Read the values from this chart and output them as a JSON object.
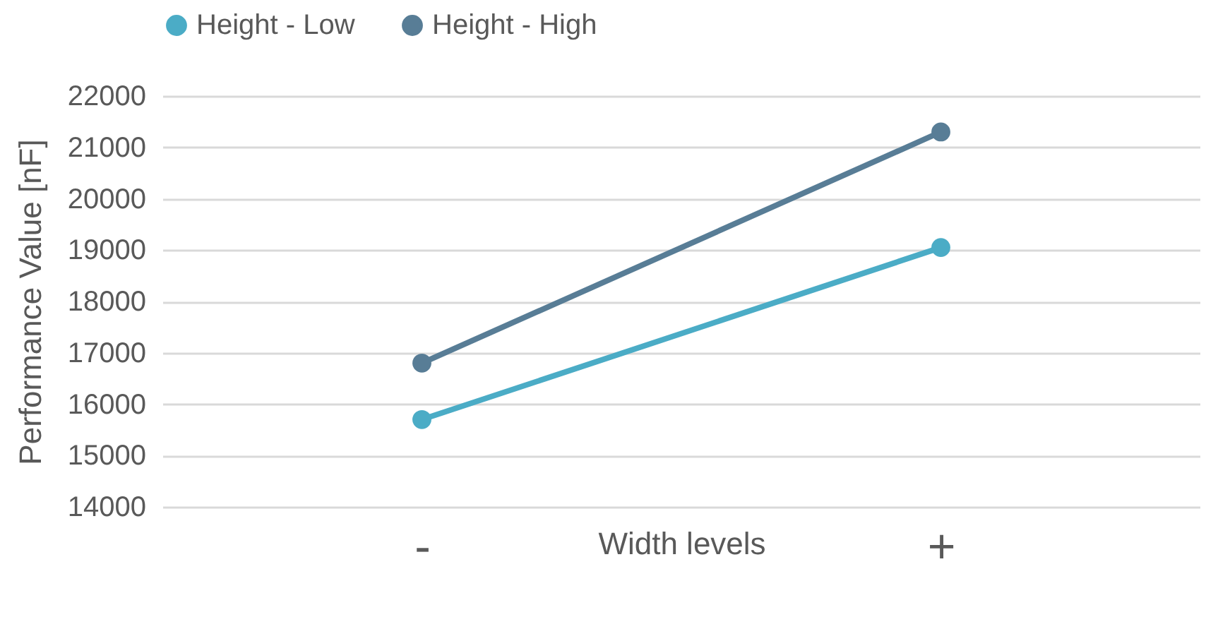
{
  "chart_data": {
    "type": "line",
    "xlabel": "Width levels",
    "ylabel": "Performance Value [nF]",
    "categories": [
      "-",
      "+"
    ],
    "series": [
      {
        "name": "Height - Low",
        "color": "#4bacc6",
        "values": [
          15700,
          19050
        ]
      },
      {
        "name": "Height - High",
        "color": "#587d96",
        "values": [
          16800,
          21300
        ]
      }
    ],
    "ylim": [
      14000,
      22000
    ],
    "yticks": [
      14000,
      15000,
      16000,
      17000,
      18000,
      19000,
      20000,
      21000,
      22000
    ],
    "grid": "y",
    "legend": "top",
    "marker": "circle",
    "line_style": "solid"
  }
}
